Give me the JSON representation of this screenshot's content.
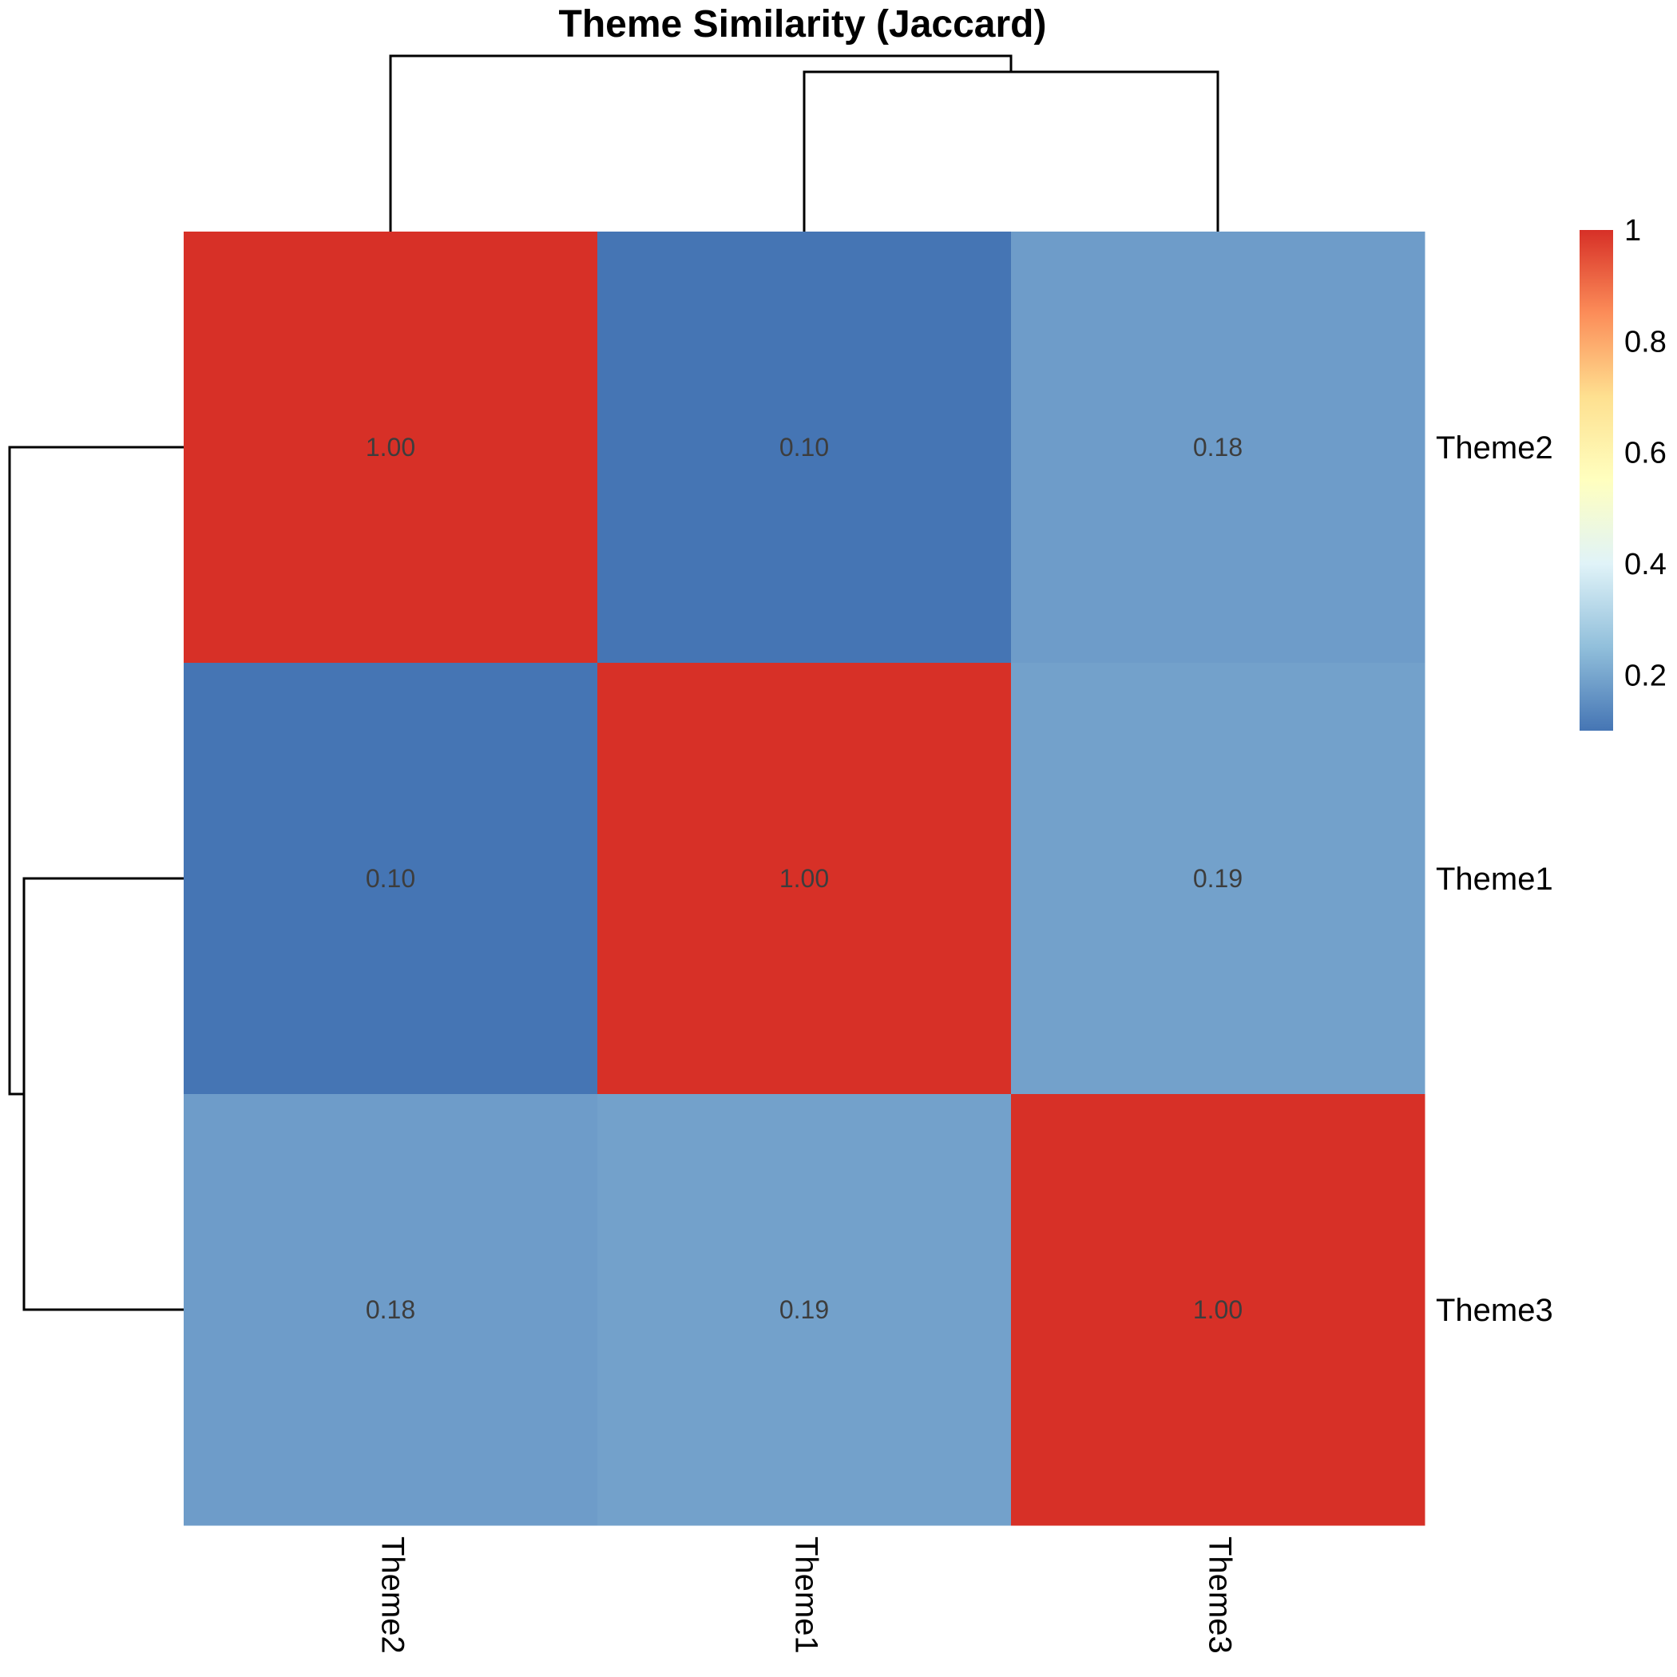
{
  "chart_data": {
    "type": "heatmap",
    "title": "Theme Similarity (Jaccard)",
    "rows": [
      "Theme2",
      "Theme1",
      "Theme3"
    ],
    "columns": [
      "Theme2",
      "Theme1",
      "Theme3"
    ],
    "values": [
      [
        1.0,
        0.1,
        0.18
      ],
      [
        0.1,
        1.0,
        0.19
      ],
      [
        0.18,
        0.19,
        1.0
      ]
    ],
    "cell_labels": [
      [
        "1.00",
        "0.10",
        "0.18"
      ],
      [
        "0.10",
        "1.00",
        "0.19"
      ],
      [
        "0.18",
        "0.19",
        "1.00"
      ]
    ],
    "color_scale": {
      "min": 0.1,
      "max": 1.0,
      "stops": [
        "#4575b4",
        "#91bfdb",
        "#e0f3f8",
        "#ffffbf",
        "#fee090",
        "#fc8d59",
        "#d73027"
      ]
    },
    "legend": {
      "position": "right",
      "ticks": [
        {
          "value": 1.0,
          "label": "1"
        },
        {
          "value": 0.8,
          "label": "0.8"
        },
        {
          "value": 0.6,
          "label": "0.6"
        },
        {
          "value": 0.4,
          "label": "0.4"
        },
        {
          "value": 0.2,
          "label": "0.2"
        }
      ]
    },
    "row_dendrogram": true,
    "column_dendrogram": true,
    "grid": false
  }
}
